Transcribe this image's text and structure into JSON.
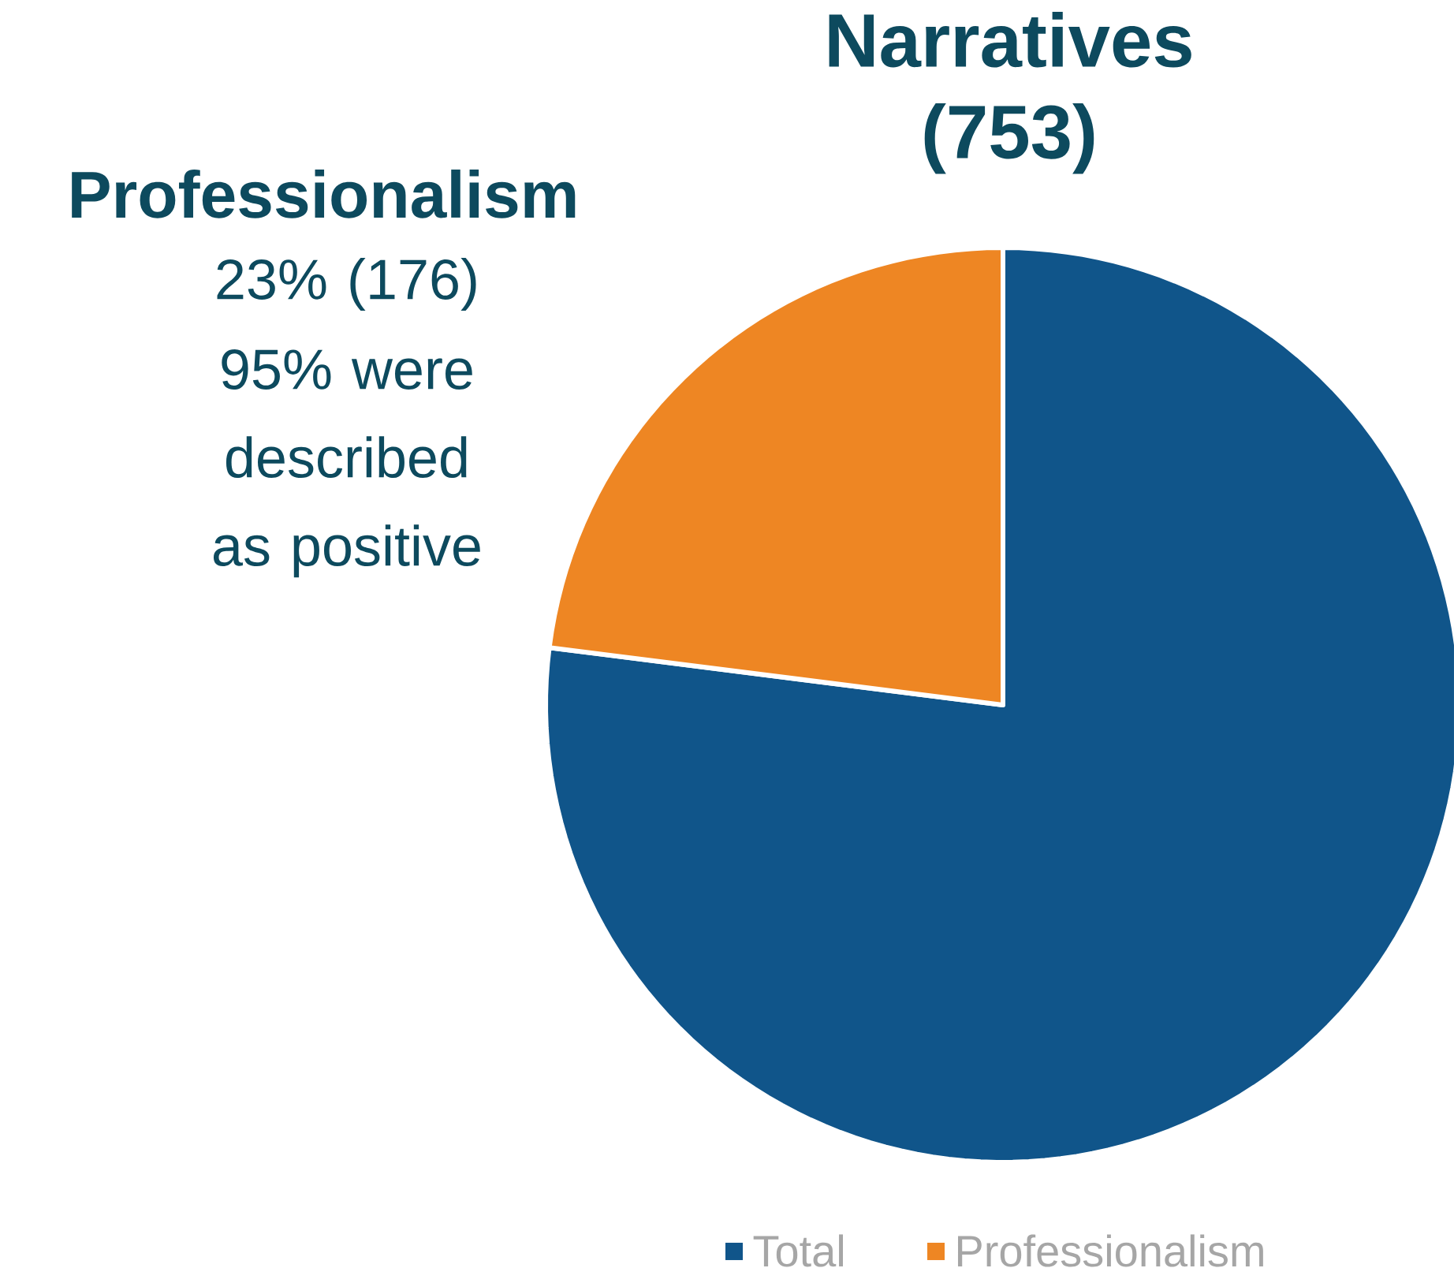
{
  "chart_data": {
    "type": "pie",
    "title": "Narratives (753)",
    "categories": [
      "Total",
      "Professionalism"
    ],
    "values": [
      77,
      23
    ],
    "colors": [
      "#10558a",
      "#ee8623"
    ],
    "annotations": [
      "Professionalism",
      "23% (176)",
      "95% were described as positive"
    ],
    "legend": "bottom"
  }
}
